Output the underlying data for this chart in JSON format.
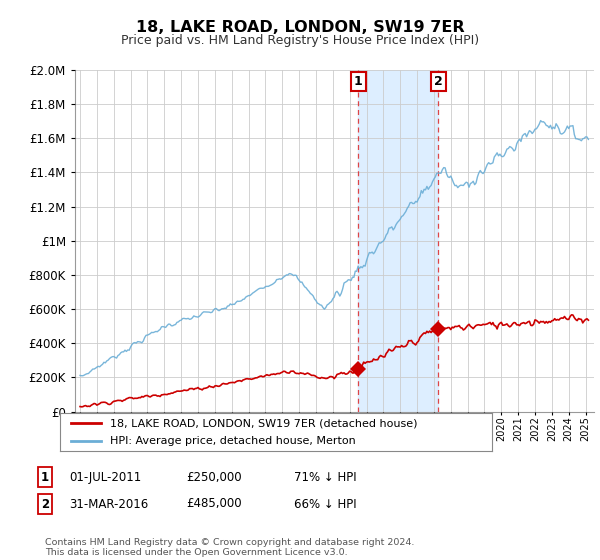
{
  "title": "18, LAKE ROAD, LONDON, SW19 7ER",
  "subtitle": "Price paid vs. HM Land Registry's House Price Index (HPI)",
  "ylim": [
    0,
    2000000
  ],
  "xlim_start": 1994.7,
  "xlim_end": 2025.5,
  "hpi_color": "#6baed6",
  "price_color": "#cc0000",
  "purchase1_date": 2011.5,
  "purchase1_price": 250000,
  "purchase2_date": 2016.25,
  "purchase2_price": 485000,
  "legend_line1": "18, LAKE ROAD, LONDON, SW19 7ER (detached house)",
  "legend_line2": "HPI: Average price, detached house, Merton",
  "ann1_date": "01-JUL-2011",
  "ann1_price": "£250,000",
  "ann1_hpi": "71% ↓ HPI",
  "ann2_date": "31-MAR-2016",
  "ann2_price": "£485,000",
  "ann2_hpi": "66% ↓ HPI",
  "footer": "Contains HM Land Registry data © Crown copyright and database right 2024.\nThis data is licensed under the Open Government Licence v3.0.",
  "background_color": "#ffffff",
  "plot_bg_color": "#ffffff",
  "highlight_color": "#ddeeff",
  "grid_color": "#cccccc"
}
